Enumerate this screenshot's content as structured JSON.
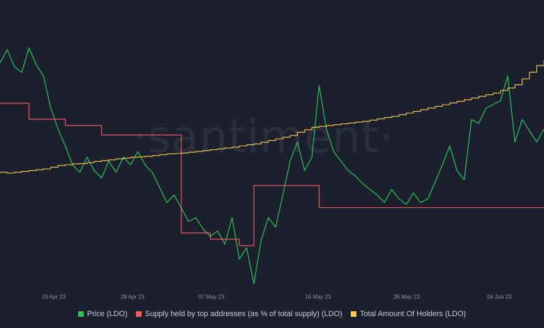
{
  "watermark": "·santiment·",
  "colors": {
    "background": "#1b1f2e",
    "price": "#26c953",
    "supply": "#ff5b5b",
    "holders": "#ffcb47",
    "axis_text": "#8e93a3"
  },
  "chart_data": {
    "type": "line",
    "grid": false,
    "legend_position": "bottom",
    "x_ticks": [
      "19 Apr 23",
      "28 Apr 23",
      "07 May 23",
      "16 May 23",
      "26 May 23",
      "04 Jun 23"
    ],
    "series": [
      {
        "name": "Price (LDO)",
        "color": "#26c953",
        "values": [
          2.62,
          2.69,
          2.6,
          2.57,
          2.7,
          2.61,
          2.55,
          2.38,
          2.27,
          2.18,
          2.08,
          2.04,
          2.12,
          2.05,
          2.01,
          2.1,
          2.04,
          2.12,
          2.08,
          2.15,
          2.08,
          2.04,
          1.96,
          1.88,
          1.92,
          1.85,
          1.78,
          1.8,
          1.74,
          1.7,
          1.73,
          1.66,
          1.8,
          1.58,
          1.64,
          1.45,
          1.68,
          1.8,
          1.75,
          1.92,
          2.1,
          2.2,
          2.05,
          2.12,
          2.5,
          2.27,
          2.15,
          2.1,
          2.05,
          2.02,
          1.98,
          1.95,
          1.92,
          1.88,
          1.95,
          1.9,
          1.87,
          1.93,
          1.88,
          1.9,
          1.99,
          2.08,
          2.18,
          2.05,
          2.0,
          2.32,
          2.3,
          2.38,
          2.4,
          2.42,
          2.55,
          2.2,
          2.32,
          2.26,
          2.2,
          2.27
        ]
      },
      {
        "name": "Supply held by top addresses (as % of total supply) (LDO)",
        "color": "#ff5b5b",
        "values": [
          72.5,
          72.5,
          72.5,
          72.5,
          72.0,
          72.0,
          72.0,
          72.0,
          72.0,
          71.8,
          71.8,
          71.8,
          71.8,
          71.8,
          71.5,
          71.5,
          71.5,
          71.5,
          71.5,
          71.5,
          71.5,
          71.5,
          71.5,
          71.5,
          71.5,
          68.4,
          68.4,
          68.4,
          68.4,
          68.2,
          68.2,
          68.2,
          68.2,
          68.0,
          68.0,
          69.9,
          69.9,
          69.9,
          69.9,
          69.9,
          69.9,
          69.9,
          69.9,
          69.9,
          69.2,
          69.2,
          69.2,
          69.2,
          69.2,
          69.2,
          69.2,
          69.2,
          69.2,
          69.2,
          69.2,
          69.2,
          69.2,
          69.2,
          69.2,
          69.2,
          69.2,
          69.2,
          69.2,
          69.2,
          69.2,
          69.2,
          69.2,
          69.2,
          69.2,
          69.2,
          69.2,
          69.2,
          69.2,
          69.2,
          69.2,
          69.2
        ]
      },
      {
        "name": "Total Amount Of Holders (LDO)",
        "color": "#ffcb47",
        "values": [
          20660,
          20655,
          20660,
          20665,
          20670,
          20675,
          20680,
          20690,
          20700,
          20705,
          20710,
          20712,
          20718,
          20725,
          20730,
          20735,
          20740,
          20745,
          20750,
          20752,
          20755,
          20760,
          20765,
          20770,
          20772,
          20775,
          20780,
          20785,
          20790,
          20795,
          20800,
          20805,
          20810,
          20818,
          20825,
          20830,
          20840,
          20850,
          20860,
          20870,
          20880,
          20900,
          20915,
          20930,
          20935,
          20940,
          20945,
          20950,
          20955,
          20960,
          20965,
          20972,
          20980,
          20988,
          20995,
          21005,
          21015,
          21025,
          21035,
          21045,
          21055,
          21065,
          21075,
          21085,
          21095,
          21105,
          21115,
          21125,
          21135,
          21150,
          21165,
          21185,
          21220,
          21260,
          21300,
          21330
        ]
      }
    ]
  }
}
